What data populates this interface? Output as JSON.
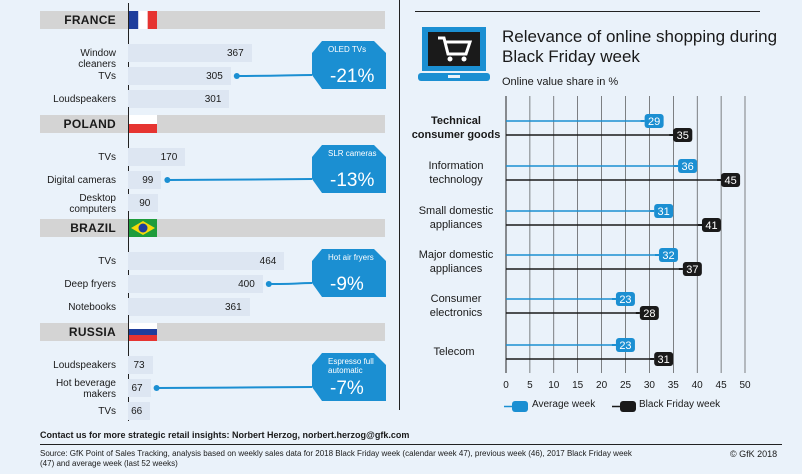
{
  "left": {
    "countries": [
      {
        "name": "FRANCE",
        "flag": "france",
        "items": [
          {
            "label": "Window cleaners",
            "value": 367
          },
          {
            "label": "TVs",
            "value": 305
          },
          {
            "label": "Loudspeakers",
            "value": 301
          }
        ],
        "tag": {
          "title": "OLED TVs",
          "pct": "-21%",
          "item": 1
        }
      },
      {
        "name": "POLAND",
        "flag": "poland",
        "items": [
          {
            "label": "TVs",
            "value": 170
          },
          {
            "label": "Digital cameras",
            "value": 99
          },
          {
            "label": "Desktop computers",
            "value": 90
          }
        ],
        "tag": {
          "title": "SLR cameras",
          "pct": "-13%",
          "item": 1
        }
      },
      {
        "name": "BRAZIL",
        "flag": "brazil",
        "items": [
          {
            "label": "TVs",
            "value": 464
          },
          {
            "label": "Deep fryers",
            "value": 400
          },
          {
            "label": "Notebooks",
            "value": 361
          }
        ],
        "tag": {
          "title": "Hot air fryers",
          "pct": "-9%",
          "item": 1
        }
      },
      {
        "name": "RUSSIA",
        "flag": "russia",
        "items": [
          {
            "label": "Loudspeakers",
            "value": 73
          },
          {
            "label": "Hot beverage makers",
            "value": 67
          },
          {
            "label": "TVs",
            "value": 66
          }
        ],
        "tag": {
          "title": "Espresso full automatic",
          "pct": "-7%",
          "item": 1
        }
      }
    ]
  },
  "right": {
    "title": "Relevance of online shopping during Black Friday week",
    "subtitle": "Online value share in %"
  },
  "chart_data": {
    "type": "bar",
    "orientation": "horizontal",
    "title": "Relevance of online shopping during Black Friday week",
    "subtitle": "Online value share in %",
    "categories": [
      "Technical consumer goods",
      "Information technology",
      "Small domestic appliances",
      "Major domestic appliances",
      "Consumer electronics",
      "Telecom"
    ],
    "series": [
      {
        "name": "Average week",
        "values": [
          29,
          36,
          31,
          32,
          23,
          23
        ],
        "color": "#1b8fd2"
      },
      {
        "name": "Black Friday week",
        "values": [
          35,
          45,
          41,
          37,
          28,
          31
        ],
        "color": "#1a1a1a"
      }
    ],
    "xlim": [
      0,
      50
    ],
    "xticks": [
      0,
      5,
      10,
      15,
      20,
      25,
      30,
      35,
      40,
      45,
      50
    ],
    "grid": true,
    "legend": "bottom"
  },
  "legend": {
    "avg": "Average week",
    "bf": "Black Friday week"
  },
  "footer": {
    "contact": "Contact us for more strategic retail insights: Norbert Herzog, norbert.herzog@gfk.com",
    "source": "Source: GfK Point of Sales Tracking, analysis based on weekly sales data for 2018 Black Friday week (calendar week 47), previous week (46), 2017 Black Friday week (47) and average week (last 52 weeks)",
    "copyright": "© GfK 2018"
  },
  "colors": {
    "accent": "#1b8fd2",
    "dark": "#1a1a1a",
    "bg": "#eaf2fa"
  }
}
